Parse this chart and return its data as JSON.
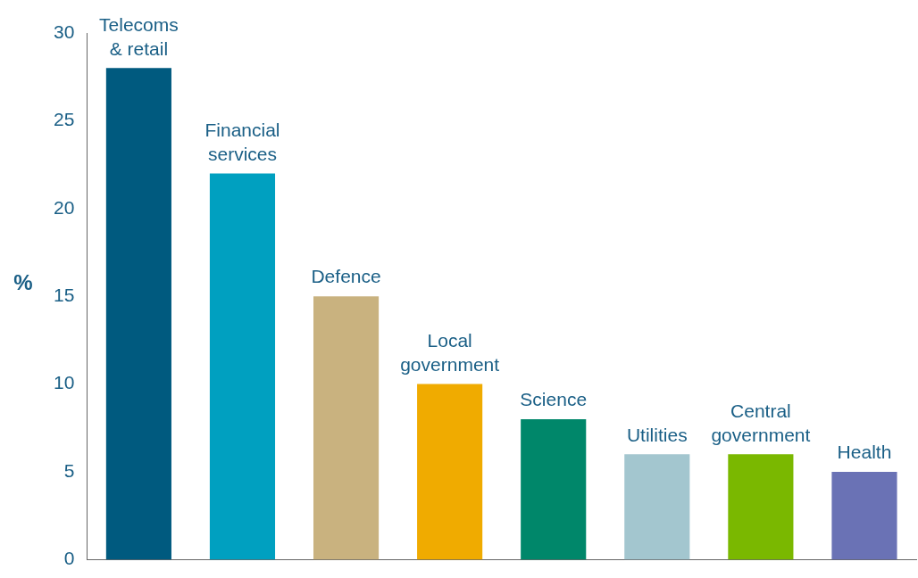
{
  "chart_data": {
    "type": "bar",
    "ylabel": "%",
    "categories": [
      "Telecoms & retail",
      "Financial services",
      "Defence",
      "Local government",
      "Science",
      "Utilities",
      "Central government",
      "Health"
    ],
    "values": [
      28,
      22,
      15,
      10,
      8,
      6,
      6,
      5
    ],
    "colors": [
      "#005a7f",
      "#00a0c0",
      "#c9b27f",
      "#f0ab00",
      "#00876a",
      "#a3c6cf",
      "#7ab800",
      "#6a72b5"
    ],
    "ylim": [
      0,
      30
    ],
    "yticks": [
      0,
      5,
      10,
      15,
      20,
      25,
      30
    ],
    "grid": false,
    "legend": false,
    "tick_labels": "y"
  }
}
